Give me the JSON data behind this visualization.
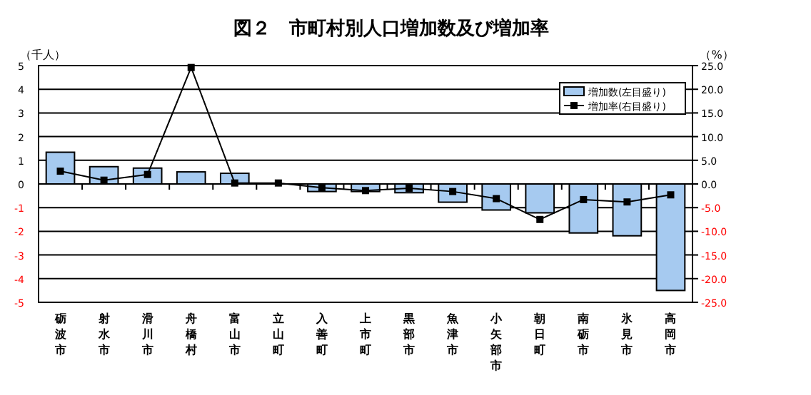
{
  "chart_data": {
    "type": "bar",
    "title": "図２　市町村別人口増加数及び増加率",
    "ylabel": "（千人）",
    "y2label": "（%）",
    "categories": [
      "砺波市",
      "射水市",
      "滑川市",
      "舟橋村",
      "富山市",
      "立山町",
      "入善町",
      "上市町",
      "黒部市",
      "魚津市",
      "小矢部市",
      "朝日町",
      "南砺市",
      "氷見市",
      "高岡市"
    ],
    "series": [
      {
        "name": "増加数(左目盛り)",
        "color": "#a6caf0",
        "values": [
          1.34,
          0.73,
          0.67,
          0.51,
          0.45,
          null,
          -0.32,
          -0.32,
          -0.37,
          -0.77,
          -1.1,
          -1.22,
          -2.07,
          -2.19,
          -4.5
        ]
      },
      {
        "name": "増加率(右目盛り)",
        "type": "line",
        "axis": "y2",
        "color": "#000000",
        "values": [
          2.7,
          0.8,
          2.0,
          24.6,
          0.2,
          0.2,
          -0.8,
          -1.4,
          -0.9,
          -1.6,
          -3.1,
          -7.5,
          -3.3,
          -3.8,
          -2.3
        ]
      }
    ],
    "ylim": [
      -5,
      5
    ],
    "yticks": [
      -5,
      -4,
      -3,
      -2,
      -1,
      0,
      1,
      2,
      3,
      4,
      5
    ],
    "y2lim": [
      -25,
      25
    ],
    "y2ticks": [
      {
        "value": -25,
        "label": "-25.0"
      },
      {
        "value": -20,
        "label": "-20.0"
      },
      {
        "value": -15,
        "label": "-15.0"
      },
      {
        "value": -10,
        "label": "-10.0"
      },
      {
        "value": -5,
        "label": "-5.0"
      },
      {
        "value": 0,
        "label": "0.0"
      },
      {
        "value": 5,
        "label": "5.0"
      },
      {
        "value": 10,
        "label": "10.0"
      },
      {
        "value": 15,
        "label": "15.0"
      },
      {
        "value": 20,
        "label": "20.0"
      },
      {
        "value": 25,
        "label": "25.0"
      }
    ],
    "grid": "y",
    "legend": "top right",
    "marker": "square",
    "line_style": "solid"
  }
}
